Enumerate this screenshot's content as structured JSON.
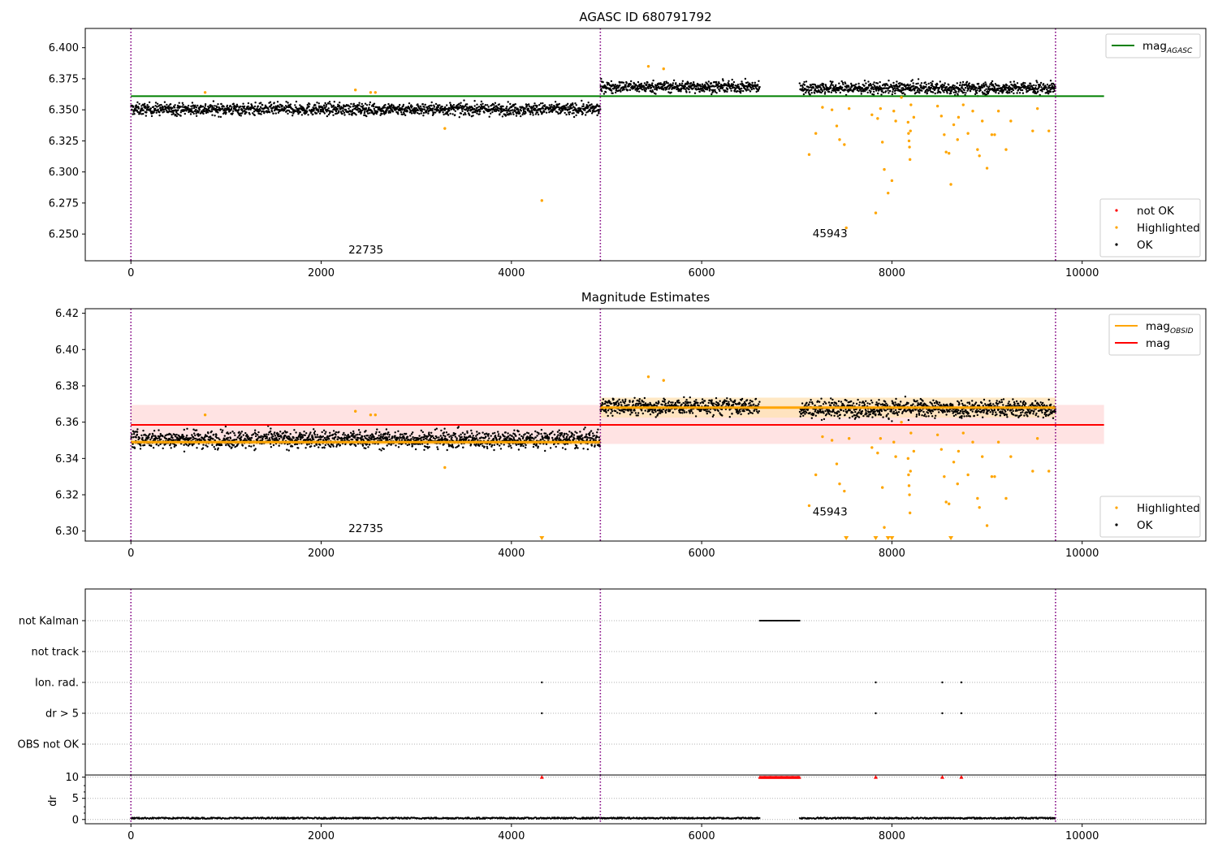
{
  "colors": {
    "ok": "#000000",
    "highlighted": "#ffa500",
    "not_ok": "#ff0000",
    "mag_agasc_line": "#008000",
    "mag_obsid_line": "#ffa500",
    "mag_line": "#ff0000",
    "mag_band": "#ffdada",
    "obsid_band": "#ffe2b5",
    "boundary": "#800080",
    "grid": "#b0b0b0"
  },
  "chart_data": [
    {
      "type": "scatter",
      "title": "AGASC ID 680791792",
      "xlabel": "",
      "ylabel": "",
      "xlim": [
        -480,
        11300
      ],
      "ylim": [
        6.2285,
        6.4155
      ],
      "x_ticks": [
        "0",
        "2000",
        "4000",
        "6000",
        "8000",
        "10000"
      ],
      "y_ticks": [
        "6.250",
        "6.275",
        "6.300",
        "6.325",
        "6.350",
        "6.375",
        "6.400"
      ],
      "mag_agasc": 6.361,
      "mag_agasc_span": [
        0,
        10230
      ],
      "boundaries": [
        0,
        4935,
        9720
      ],
      "obsid_labels": [
        {
          "text": "22735",
          "x": 2470,
          "y": 6.2345
        },
        {
          "text": "45943",
          "x": 7350,
          "y": 6.2475
        }
      ],
      "segments": [
        {
          "x0": 0,
          "x1": 4935,
          "mean": 6.3505,
          "spread": 0.0048
        },
        {
          "x0": 4935,
          "x1": 6610,
          "mean": 6.3685,
          "spread": 0.0045
        },
        {
          "x0": 7030,
          "x1": 9720,
          "mean": 6.3675,
          "spread": 0.0048
        }
      ],
      "highlighted_points": [
        [
          780,
          6.364
        ],
        [
          2360,
          6.366
        ],
        [
          2520,
          6.364
        ],
        [
          2570,
          6.364
        ],
        [
          3300,
          6.335
        ],
        [
          4320,
          6.277
        ],
        [
          5440,
          6.385
        ],
        [
          5600,
          6.383
        ],
        [
          7130,
          6.314
        ],
        [
          7200,
          6.331
        ],
        [
          7270,
          6.352
        ],
        [
          7370,
          6.35
        ],
        [
          7420,
          6.337
        ],
        [
          7450,
          6.326
        ],
        [
          7500,
          6.322
        ],
        [
          7520,
          6.255
        ],
        [
          7550,
          6.351
        ],
        [
          7790,
          6.346
        ],
        [
          7830,
          6.267
        ],
        [
          7850,
          6.343
        ],
        [
          7880,
          6.351
        ],
        [
          7900,
          6.324
        ],
        [
          7920,
          6.302
        ],
        [
          7960,
          6.283
        ],
        [
          8000,
          6.293
        ],
        [
          8020,
          6.349
        ],
        [
          8040,
          6.341
        ],
        [
          8100,
          6.36
        ],
        [
          8170,
          6.34
        ],
        [
          8175,
          6.331
        ],
        [
          8180,
          6.325
        ],
        [
          8185,
          6.32
        ],
        [
          8190,
          6.31
        ],
        [
          8195,
          6.333
        ],
        [
          8200,
          6.354
        ],
        [
          8230,
          6.344
        ],
        [
          8480,
          6.353
        ],
        [
          8520,
          6.345
        ],
        [
          8550,
          6.33
        ],
        [
          8570,
          6.316
        ],
        [
          8600,
          6.315
        ],
        [
          8620,
          6.29
        ],
        [
          8650,
          6.338
        ],
        [
          8690,
          6.326
        ],
        [
          8700,
          6.344
        ],
        [
          8750,
          6.354
        ],
        [
          8800,
          6.331
        ],
        [
          8850,
          6.349
        ],
        [
          8900,
          6.318
        ],
        [
          8920,
          6.313
        ],
        [
          8950,
          6.341
        ],
        [
          9000,
          6.303
        ],
        [
          9050,
          6.33
        ],
        [
          9080,
          6.33
        ],
        [
          9120,
          6.349
        ],
        [
          9200,
          6.318
        ],
        [
          9250,
          6.341
        ],
        [
          9480,
          6.333
        ],
        [
          9530,
          6.351
        ],
        [
          9650,
          6.333
        ]
      ],
      "legends": [
        {
          "position": "upper-right",
          "entries": [
            {
              "label": "mag",
              "sub": "AGASC",
              "kind": "line",
              "color_key": "mag_agasc_line"
            }
          ]
        },
        {
          "position": "lower-right",
          "entries": [
            {
              "label": "not OK",
              "kind": "dot",
              "color_key": "not_ok"
            },
            {
              "label": "Highlighted",
              "kind": "dot",
              "color_key": "highlighted"
            },
            {
              "label": "OK",
              "kind": "dot",
              "color_key": "ok"
            }
          ]
        }
      ]
    },
    {
      "type": "scatter",
      "title": "Magnitude Estimates",
      "xlabel": "",
      "ylabel": "",
      "xlim": [
        -480,
        11300
      ],
      "ylim": [
        6.2945,
        6.4225
      ],
      "x_ticks": [
        "0",
        "2000",
        "4000",
        "6000",
        "8000",
        "10000"
      ],
      "y_ticks": [
        "6.30",
        "6.32",
        "6.34",
        "6.36",
        "6.38",
        "6.40",
        "6.42"
      ],
      "mag": 6.3585,
      "mag_band": [
        6.348,
        6.3695
      ],
      "mag_span": [
        0,
        10230
      ],
      "mag_obsid": [
        {
          "x0": 0,
          "x1": 4935,
          "value": 6.349,
          "band": [
            6.3475,
            6.3505
          ]
        },
        {
          "x0": 4935,
          "x1": 9720,
          "value": 6.368,
          "band": [
            6.3625,
            6.3735
          ]
        }
      ],
      "boundaries": [
        0,
        4935,
        9720
      ],
      "obsid_labels": [
        {
          "text": "22735",
          "x": 2470,
          "y": 6.2995
        },
        {
          "text": "45943",
          "x": 7350,
          "y": 6.3085
        }
      ],
      "clipped_markers_x": [
        4320,
        7520,
        7830,
        7960,
        8000,
        8620
      ],
      "legends": [
        {
          "position": "upper-right",
          "entries": [
            {
              "label": "mag",
              "sub": "OBSID",
              "kind": "line",
              "color_key": "mag_obsid_line"
            },
            {
              "label": "mag",
              "kind": "line",
              "color_key": "mag_line"
            }
          ]
        },
        {
          "position": "lower-right",
          "entries": [
            {
              "label": "Highlighted",
              "kind": "dot",
              "color_key": "highlighted"
            },
            {
              "label": "OK",
              "kind": "dot",
              "color_key": "ok"
            }
          ]
        }
      ]
    },
    {
      "type": "scatter",
      "title": "",
      "xlim": [
        -480,
        11300
      ],
      "categories": [
        "not Kalman",
        "not track",
        "Ion. rad.",
        "dr > 5",
        "OBS not OK"
      ],
      "boundaries": [
        0,
        4935,
        9720
      ],
      "flags": [
        {
          "category": "not Kalman",
          "x_ranges": [
            [
              6610,
              7030
            ]
          ]
        },
        {
          "category": "Ion. rad.",
          "x": [
            4320,
            7830,
            8530,
            8730
          ]
        },
        {
          "category": "dr > 5",
          "x": [
            4320,
            7830,
            8530,
            8730
          ]
        }
      ]
    },
    {
      "type": "scatter",
      "title": "",
      "xlabel": "",
      "ylabel": "dr",
      "xlim": [
        -480,
        11300
      ],
      "ylim": [
        -1,
        10.5
      ],
      "x_ticks": [
        "0",
        "2000",
        "4000",
        "6000",
        "8000",
        "10000"
      ],
      "y_ticks": [
        "0",
        "5",
        "10"
      ],
      "boundaries": [
        0,
        4935,
        9720
      ],
      "clipped_x": [
        4320,
        7830,
        8530,
        8730
      ],
      "clipped_x_ranges": [
        [
          6610,
          7030
        ]
      ],
      "segments": [
        [
          0,
          4935
        ],
        [
          4935,
          6610
        ],
        [
          7030,
          9720
        ]
      ]
    }
  ]
}
